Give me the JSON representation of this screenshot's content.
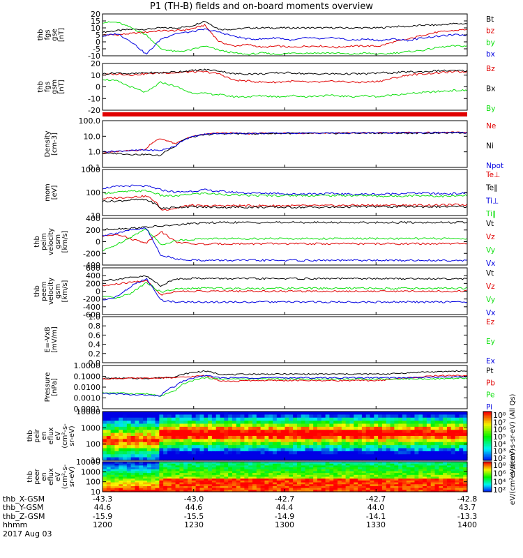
{
  "title": "P1 (TH-B) fields and on-board moments overview",
  "colors": {
    "black": "#000000",
    "red": "#e00000",
    "green": "#10e010",
    "blue": "#0000e0"
  },
  "chart_data": [
    {
      "type": "line",
      "ylabel": [
        "thb",
        "fgs",
        "gse",
        "[nT]"
      ],
      "ylim": [
        -10,
        20
      ],
      "yticks": [
        "20",
        "15",
        "10",
        "5",
        "0",
        "-5",
        "-10"
      ],
      "series": [
        {
          "name": "Bt",
          "color": "black",
          "values": [
            7,
            8,
            9,
            9,
            10,
            10,
            11,
            15,
            9,
            9,
            10,
            10,
            10,
            10,
            10,
            10,
            10,
            10,
            10,
            10,
            11,
            11,
            12,
            12,
            13,
            13
          ]
        },
        {
          "name": "bz",
          "color": "red",
          "values": [
            5,
            5,
            6,
            7,
            8,
            8,
            9,
            12,
            0,
            -3,
            -2,
            -4,
            -3,
            -4,
            -3,
            -3,
            -4,
            -3,
            -3,
            -3,
            0,
            2,
            5,
            7,
            8,
            9
          ]
        },
        {
          "name": "by",
          "color": "green",
          "values": [
            14,
            14,
            10,
            5,
            -5,
            -7,
            -6,
            -3,
            -6,
            -8,
            -9,
            -8,
            -9,
            -8,
            -8,
            -8,
            -8,
            -9,
            -8,
            -9,
            -8,
            -7,
            -6,
            -4,
            -3,
            -3
          ]
        },
        {
          "name": "bx",
          "color": "blue",
          "values": [
            4,
            6,
            0,
            -9,
            2,
            6,
            7,
            9,
            7,
            4,
            2,
            2,
            3,
            1,
            3,
            2,
            3,
            1,
            2,
            1,
            2,
            1,
            3,
            4,
            5,
            5
          ]
        }
      ]
    },
    {
      "type": "line",
      "ylabel": [
        "thb",
        "fgs",
        "gsm",
        "[nT]"
      ],
      "ylim": [
        -25,
        20
      ],
      "yticks": [
        "20",
        "10",
        "0",
        "-10",
        "-20"
      ],
      "series": [
        {
          "name": "Bz",
          "color": "red",
          "values": [
            9,
            10,
            9,
            10,
            11,
            11,
            12,
            12,
            10,
            4,
            3,
            2,
            2,
            3,
            2,
            2,
            3,
            2,
            2,
            3,
            6,
            9,
            10,
            11,
            12,
            12
          ]
        },
        {
          "name": "Bx",
          "color": "black",
          "values": [
            10,
            11,
            10,
            11,
            11,
            12,
            13,
            14,
            13,
            10,
            10,
            10,
            11,
            11,
            10,
            10,
            10,
            10,
            10,
            11,
            11,
            12,
            12,
            13,
            13,
            13
          ]
        },
        {
          "name": "By",
          "color": "green",
          "values": [
            5,
            3,
            -3,
            -8,
            2,
            -2,
            -8,
            -9,
            -10,
            -12,
            -12,
            -11,
            -12,
            -11,
            -12,
            -11,
            -11,
            -12,
            -11,
            -12,
            -10,
            -9,
            -8,
            -7,
            -6,
            -6
          ]
        }
      ]
    },
    {
      "type": "line",
      "ylabel": [
        "Density",
        "[cm-3]"
      ],
      "yscale": "log",
      "ylim": [
        0.05,
        200
      ],
      "yticks": [
        "100.0",
        "10.0",
        "1.0",
        "0.1"
      ],
      "series": [
        {
          "name": "Ne",
          "color": "red",
          "values": [
            0.7,
            0.8,
            1.0,
            1.2,
            8,
            3,
            10,
            18,
            22,
            22,
            20,
            21,
            22,
            22,
            22,
            22,
            22,
            23,
            23,
            23,
            24,
            24,
            24,
            24,
            25,
            25
          ]
        },
        {
          "name": "Ni",
          "color": "black",
          "values": [
            0.6,
            0.6,
            0.5,
            0.5,
            0.4,
            2,
            10,
            16,
            20,
            20,
            20,
            20,
            21,
            21,
            21,
            21,
            21,
            22,
            22,
            22,
            22,
            22,
            22,
            23,
            23,
            23
          ]
        },
        {
          "name": "Npot",
          "color": "blue",
          "values": [
            0.8,
            0.9,
            1.0,
            1.1,
            1.0,
            2,
            10,
            18,
            21,
            21,
            21,
            21,
            22,
            22,
            22,
            22,
            22,
            22,
            22,
            23,
            23,
            23,
            23,
            24,
            24,
            24
          ]
        }
      ]
    },
    {
      "type": "line",
      "ylabel": [
        "mom",
        "[eV]"
      ],
      "yscale": "log",
      "ylim": [
        5,
        1500
      ],
      "yticks": [
        "1000",
        "100",
        "10"
      ],
      "series": [
        {
          "name": "Te⊥",
          "color": "red",
          "values": [
            40,
            45,
            50,
            55,
            10,
            12,
            18,
            16,
            17,
            17,
            17,
            17,
            17,
            17,
            17,
            17,
            17,
            18,
            18,
            18,
            18,
            18,
            18,
            18,
            19,
            19
          ]
        },
        {
          "name": "Te∥",
          "color": "black",
          "values": [
            30,
            30,
            35,
            35,
            12,
            14,
            15,
            14,
            14,
            14,
            14,
            14,
            14,
            14,
            14,
            14,
            14,
            15,
            15,
            15,
            15,
            15,
            15,
            15,
            15,
            15
          ]
        },
        {
          "name": "Ti⊥",
          "color": "blue",
          "values": [
            150,
            180,
            200,
            190,
            120,
            90,
            100,
            120,
            100,
            90,
            80,
            80,
            80,
            70,
            75,
            75,
            75,
            70,
            70,
            70,
            75,
            80,
            80,
            75,
            75,
            80
          ]
        },
        {
          "name": "Ti∥",
          "color": "green",
          "values": [
            80,
            90,
            100,
            110,
            60,
            55,
            70,
            80,
            70,
            65,
            60,
            60,
            60,
            60,
            60,
            60,
            60,
            60,
            60,
            55,
            55,
            60,
            60,
            55,
            55,
            60
          ]
        }
      ]
    },
    {
      "type": "line",
      "ylabel": [
        "thb",
        "peim",
        "velocity",
        "gsm",
        "[km/s]"
      ],
      "ylim": [
        -450,
        450
      ],
      "yticks": [
        "400",
        "200",
        "0",
        "-200",
        "-400"
      ],
      "series": [
        {
          "name": "Vt",
          "color": "black",
          "values": [
            230,
            250,
            260,
            280,
            300,
            320,
            350,
            360,
            370,
            370,
            370,
            370,
            370,
            370,
            370,
            370,
            370,
            370,
            370,
            370,
            370,
            370,
            370,
            370,
            370,
            370
          ]
        },
        {
          "name": "Vz",
          "color": "red",
          "values": [
            100,
            150,
            50,
            -20,
            200,
            0,
            -40,
            -50,
            -40,
            -40,
            -40,
            -40,
            -40,
            -40,
            -40,
            -40,
            -40,
            -40,
            -40,
            -40,
            -40,
            -40,
            -40,
            -40,
            -40,
            -40
          ]
        },
        {
          "name": "Vy",
          "color": "green",
          "values": [
            -180,
            -50,
            100,
            250,
            -60,
            20,
            40,
            60,
            60,
            60,
            60,
            60,
            60,
            60,
            60,
            60,
            60,
            60,
            60,
            60,
            60,
            60,
            60,
            60,
            60,
            60
          ]
        },
        {
          "name": "Vx",
          "color": "blue",
          "values": [
            120,
            170,
            220,
            260,
            -260,
            -330,
            -350,
            -360,
            -360,
            -360,
            -360,
            -360,
            -360,
            -360,
            -360,
            -360,
            -360,
            -360,
            -360,
            -360,
            -360,
            -360,
            -360,
            -360,
            -360,
            -360
          ]
        }
      ]
    },
    {
      "type": "line",
      "ylabel": [
        "thb",
        "peem",
        "velocity",
        "gsm",
        "[km/s]"
      ],
      "ylim": [
        -650,
        650
      ],
      "yticks": [
        "600",
        "400",
        "200",
        "0",
        "-200",
        "-400",
        "-600"
      ],
      "series": [
        {
          "name": "Vt",
          "color": "black",
          "values": [
            300,
            330,
            380,
            420,
            150,
            340,
            360,
            360,
            350,
            350,
            350,
            350,
            350,
            350,
            350,
            350,
            350,
            350,
            350,
            350,
            350,
            350,
            350,
            350,
            350,
            350
          ]
        },
        {
          "name": "Vz",
          "color": "red",
          "values": [
            150,
            200,
            250,
            300,
            -100,
            0,
            0,
            0,
            0,
            0,
            0,
            0,
            0,
            0,
            0,
            0,
            0,
            0,
            0,
            0,
            0,
            0,
            0,
            0,
            0,
            0
          ]
        },
        {
          "name": "Vy",
          "color": "green",
          "values": [
            -150,
            -200,
            -50,
            250,
            -30,
            60,
            70,
            90,
            80,
            80,
            80,
            80,
            80,
            80,
            80,
            80,
            80,
            80,
            80,
            80,
            80,
            80,
            80,
            80,
            80,
            80
          ]
        },
        {
          "name": "Vx",
          "color": "blue",
          "values": [
            -250,
            -150,
            150,
            350,
            -250,
            -300,
            -300,
            -300,
            -300,
            -300,
            -300,
            -300,
            -300,
            -300,
            -300,
            -300,
            -300,
            -300,
            -300,
            -300,
            -300,
            -300,
            -300,
            -300,
            -300,
            -300
          ]
        }
      ]
    },
    {
      "type": "line",
      "ylabel": [
        "E=-VxB",
        "[mV/m]"
      ],
      "ylim": [
        0,
        1.0
      ],
      "yticks": [
        "1.0",
        "0.8",
        "0.6",
        "0.4",
        "0.2",
        "0.0"
      ],
      "series": [
        {
          "name": "Ez",
          "color": "red",
          "values": []
        },
        {
          "name": "Ey",
          "color": "green",
          "values": []
        },
        {
          "name": "Ex",
          "color": "blue",
          "values": []
        }
      ]
    },
    {
      "type": "line",
      "ylabel": [
        "Pressure",
        "[nPa]"
      ],
      "yscale": "log",
      "ylim": [
        0.0003,
        1.0
      ],
      "yticks": [
        "1.0000",
        "0.1000",
        "0.0100",
        "0.0010",
        "0.0001"
      ],
      "series": [
        {
          "name": "Pt",
          "color": "black",
          "values": [
            0.09,
            0.09,
            0.09,
            0.09,
            0.1,
            0.12,
            0.25,
            0.35,
            0.2,
            0.18,
            0.2,
            0.2,
            0.2,
            0.2,
            0.2,
            0.2,
            0.2,
            0.2,
            0.2,
            0.2,
            0.22,
            0.25,
            0.3,
            0.3,
            0.35,
            0.35
          ]
        },
        {
          "name": "Pb",
          "color": "red",
          "values": [
            0.08,
            0.09,
            0.09,
            0.09,
            0.1,
            0.1,
            0.12,
            0.15,
            0.06,
            0.05,
            0.06,
            0.06,
            0.06,
            0.06,
            0.06,
            0.06,
            0.06,
            0.06,
            0.06,
            0.06,
            0.08,
            0.1,
            0.12,
            0.15,
            0.15,
            0.15
          ]
        },
        {
          "name": "Pe",
          "color": "green",
          "values": [
            0.006,
            0.006,
            0.005,
            0.005,
            0.003,
            0.008,
            0.05,
            0.1,
            0.08,
            0.08,
            0.08,
            0.08,
            0.08,
            0.08,
            0.08,
            0.08,
            0.08,
            0.08,
            0.08,
            0.08,
            0.08,
            0.08,
            0.08,
            0.08,
            0.09,
            0.09
          ]
        },
        {
          "name": "Pi",
          "color": "blue",
          "values": [
            0.005,
            0.005,
            0.004,
            0.004,
            0.003,
            0.02,
            0.08,
            0.15,
            0.1,
            0.1,
            0.1,
            0.1,
            0.1,
            0.1,
            0.1,
            0.1,
            0.1,
            0.1,
            0.1,
            0.1,
            0.1,
            0.1,
            0.11,
            0.11,
            0.12,
            0.12
          ]
        }
      ]
    },
    {
      "type": "heatmap",
      "ylabel": [
        "thb",
        "peir",
        "en",
        "eflux",
        "eV",
        "(cm²-s-",
        "sr-eV)"
      ],
      "yscale": "log",
      "yticks": [
        "10000",
        "1000",
        "100",
        "10"
      ],
      "colorbar_label": "eV/(cm²-s-sr-eV) (All Qs)",
      "colorbar_ticks": [
        "10⁸",
        "10⁷",
        "10⁶",
        "10⁵",
        "10⁴",
        "10³",
        "10²"
      ]
    },
    {
      "type": "heatmap",
      "ylabel": [
        "thb",
        "peer",
        "en",
        "eflux",
        "eV",
        "(cm²-s-",
        "sr-eV)"
      ],
      "yscale": "log",
      "yticks": [
        "10000",
        "1000",
        "100",
        "10"
      ],
      "colorbar_label": "eV/(cm²-s-sr-eV)",
      "colorbar_ticks": [
        "10⁸",
        "10⁶",
        "10⁴",
        "10²"
      ]
    }
  ],
  "ephemeris": {
    "labels": [
      "thb_X-GSM",
      "thb_Y-GSM",
      "thb_Z-GSM",
      "hhmm",
      "2017 Aug 03"
    ],
    "columns": [
      {
        "x": "-43.3",
        "y": "44.6",
        "z": "-15.9",
        "t": "1200"
      },
      {
        "x": "-43.0",
        "y": "44.6",
        "z": "-15.5",
        "t": "1230"
      },
      {
        "x": "-42.7",
        "y": "44.4",
        "z": "-14.9",
        "t": "1300"
      },
      {
        "x": "-42.7",
        "y": "44.0",
        "z": "-14.1",
        "t": "1330"
      },
      {
        "x": "-42.8",
        "y": "43.7",
        "z": "-13.3",
        "t": "1400"
      }
    ]
  }
}
